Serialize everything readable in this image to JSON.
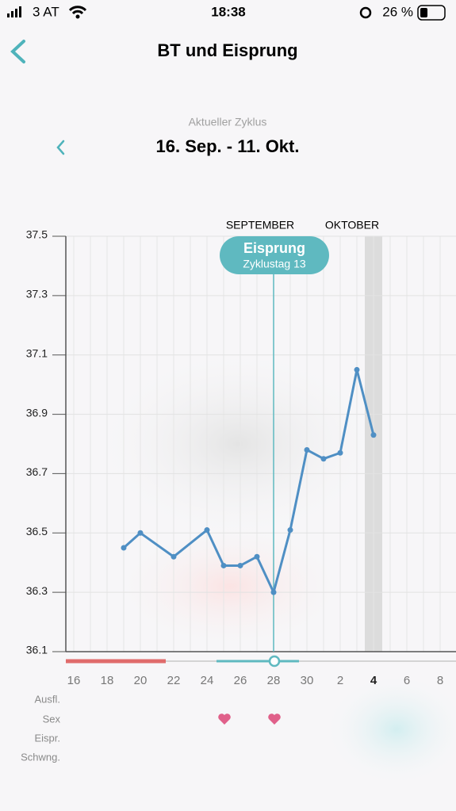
{
  "status_bar": {
    "carrier": "3 AT",
    "time": "18:38",
    "battery": "26 %"
  },
  "header": {
    "title": "BT und Eisprung",
    "cycle_label": "Aktueller Zyklus",
    "cycle_range": "16. Sep. - 11. Okt."
  },
  "chart_data": {
    "type": "line",
    "months": [
      "SEPTEMBER",
      "OKTOBER"
    ],
    "categories": [
      "16",
      null,
      "18",
      null,
      "20",
      null,
      "22",
      null,
      "24",
      null,
      "26",
      null,
      "28",
      null,
      "30",
      null,
      "2",
      null,
      "4",
      null,
      "6",
      null,
      "8"
    ],
    "series": [
      {
        "name": "BT",
        "color": "#4f8fc4",
        "values": [
          null,
          null,
          null,
          36.45,
          36.5,
          null,
          36.42,
          null,
          36.51,
          36.39,
          36.39,
          36.42,
          36.3,
          36.51,
          36.78,
          36.75,
          36.77,
          37.05,
          36.83,
          null,
          null,
          null,
          null
        ]
      }
    ],
    "ylim": [
      36.1,
      37.5
    ],
    "yticks": [
      {
        "value": 36.1,
        "label": "36.1"
      },
      {
        "value": 36.3,
        "label": "36.3"
      },
      {
        "value": 36.5,
        "label": "36.5"
      },
      {
        "value": 36.7,
        "label": "36.7"
      },
      {
        "value": 36.9,
        "label": "36.9"
      },
      {
        "value": 37.1,
        "label": "37.1"
      },
      {
        "value": 37.3,
        "label": "37.3"
      },
      {
        "value": 37.5,
        "label": "37.5"
      }
    ],
    "grid": true,
    "today": "4",
    "annotation": {
      "text": "Eisprung",
      "subtext": "Zyklustag 13",
      "category": "28"
    }
  },
  "rows": [
    "Ausfl.",
    "Sex",
    "Eispr.",
    "Schwng."
  ]
}
